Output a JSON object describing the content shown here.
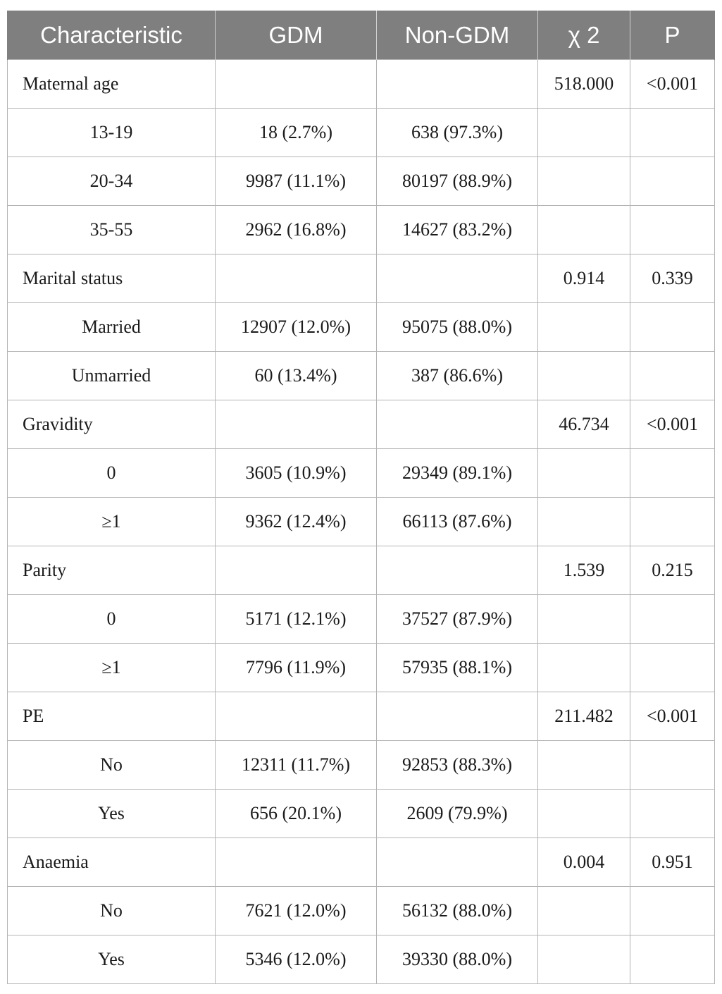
{
  "table": {
    "headers": [
      "Characteristic",
      "GDM",
      "Non-GDM",
      "χ 2",
      "P"
    ],
    "rows": [
      {
        "type": "group",
        "label": "Maternal age",
        "gdm": "",
        "non_gdm": "",
        "chi2": "518.000",
        "p": "<0.001"
      },
      {
        "type": "sub",
        "label": "13-19",
        "gdm": "18 (2.7%)",
        "non_gdm": "638 (97.3%)",
        "chi2": "",
        "p": ""
      },
      {
        "type": "sub",
        "label": "20-34",
        "gdm": "9987 (11.1%)",
        "non_gdm": "80197 (88.9%)",
        "chi2": "",
        "p": ""
      },
      {
        "type": "sub",
        "label": "35-55",
        "gdm": "2962 (16.8%)",
        "non_gdm": "14627 (83.2%)",
        "chi2": "",
        "p": ""
      },
      {
        "type": "group",
        "label": "Marital status",
        "gdm": "",
        "non_gdm": "",
        "chi2": "0.914",
        "p": "0.339"
      },
      {
        "type": "sub",
        "label": "Married",
        "gdm": "12907 (12.0%)",
        "non_gdm": "95075 (88.0%)",
        "chi2": "",
        "p": ""
      },
      {
        "type": "sub",
        "label": "Unmarried",
        "gdm": "60 (13.4%)",
        "non_gdm": "387 (86.6%)",
        "chi2": "",
        "p": ""
      },
      {
        "type": "group",
        "label": "Gravidity",
        "gdm": "",
        "non_gdm": "",
        "chi2": "46.734",
        "p": "<0.001"
      },
      {
        "type": "sub",
        "label": "0",
        "gdm": "3605 (10.9%)",
        "non_gdm": "29349 (89.1%)",
        "chi2": "",
        "p": ""
      },
      {
        "type": "sub",
        "label": "≥1",
        "gdm": "9362 (12.4%)",
        "non_gdm": "66113 (87.6%)",
        "chi2": "",
        "p": ""
      },
      {
        "type": "group",
        "label": "Parity",
        "gdm": "",
        "non_gdm": "",
        "chi2": "1.539",
        "p": "0.215"
      },
      {
        "type": "sub",
        "label": "0",
        "gdm": "5171 (12.1%)",
        "non_gdm": "37527 (87.9%)",
        "chi2": "",
        "p": ""
      },
      {
        "type": "sub",
        "label": "≥1",
        "gdm": "7796 (11.9%)",
        "non_gdm": "57935 (88.1%)",
        "chi2": "",
        "p": ""
      },
      {
        "type": "group",
        "label": "PE",
        "gdm": "",
        "non_gdm": "",
        "chi2": "211.482",
        "p": "<0.001"
      },
      {
        "type": "sub",
        "label": "No",
        "gdm": "12311 (11.7%)",
        "non_gdm": "92853 (88.3%)",
        "chi2": "",
        "p": ""
      },
      {
        "type": "sub",
        "label": "Yes",
        "gdm": "656 (20.1%)",
        "non_gdm": "2609 (79.9%)",
        "chi2": "",
        "p": ""
      },
      {
        "type": "group",
        "label": "Anaemia",
        "gdm": "",
        "non_gdm": "",
        "chi2": "0.004",
        "p": "0.951"
      },
      {
        "type": "sub",
        "label": "No",
        "gdm": "7621 (12.0%)",
        "non_gdm": "56132 (88.0%)",
        "chi2": "",
        "p": ""
      },
      {
        "type": "sub",
        "label": "Yes",
        "gdm": "5346 (12.0%)",
        "non_gdm": "39330 (88.0%)",
        "chi2": "",
        "p": ""
      }
    ]
  },
  "colors": {
    "header_bg": "#7f7f7f",
    "header_text": "#ffffff",
    "border": "#b4b4b4"
  }
}
